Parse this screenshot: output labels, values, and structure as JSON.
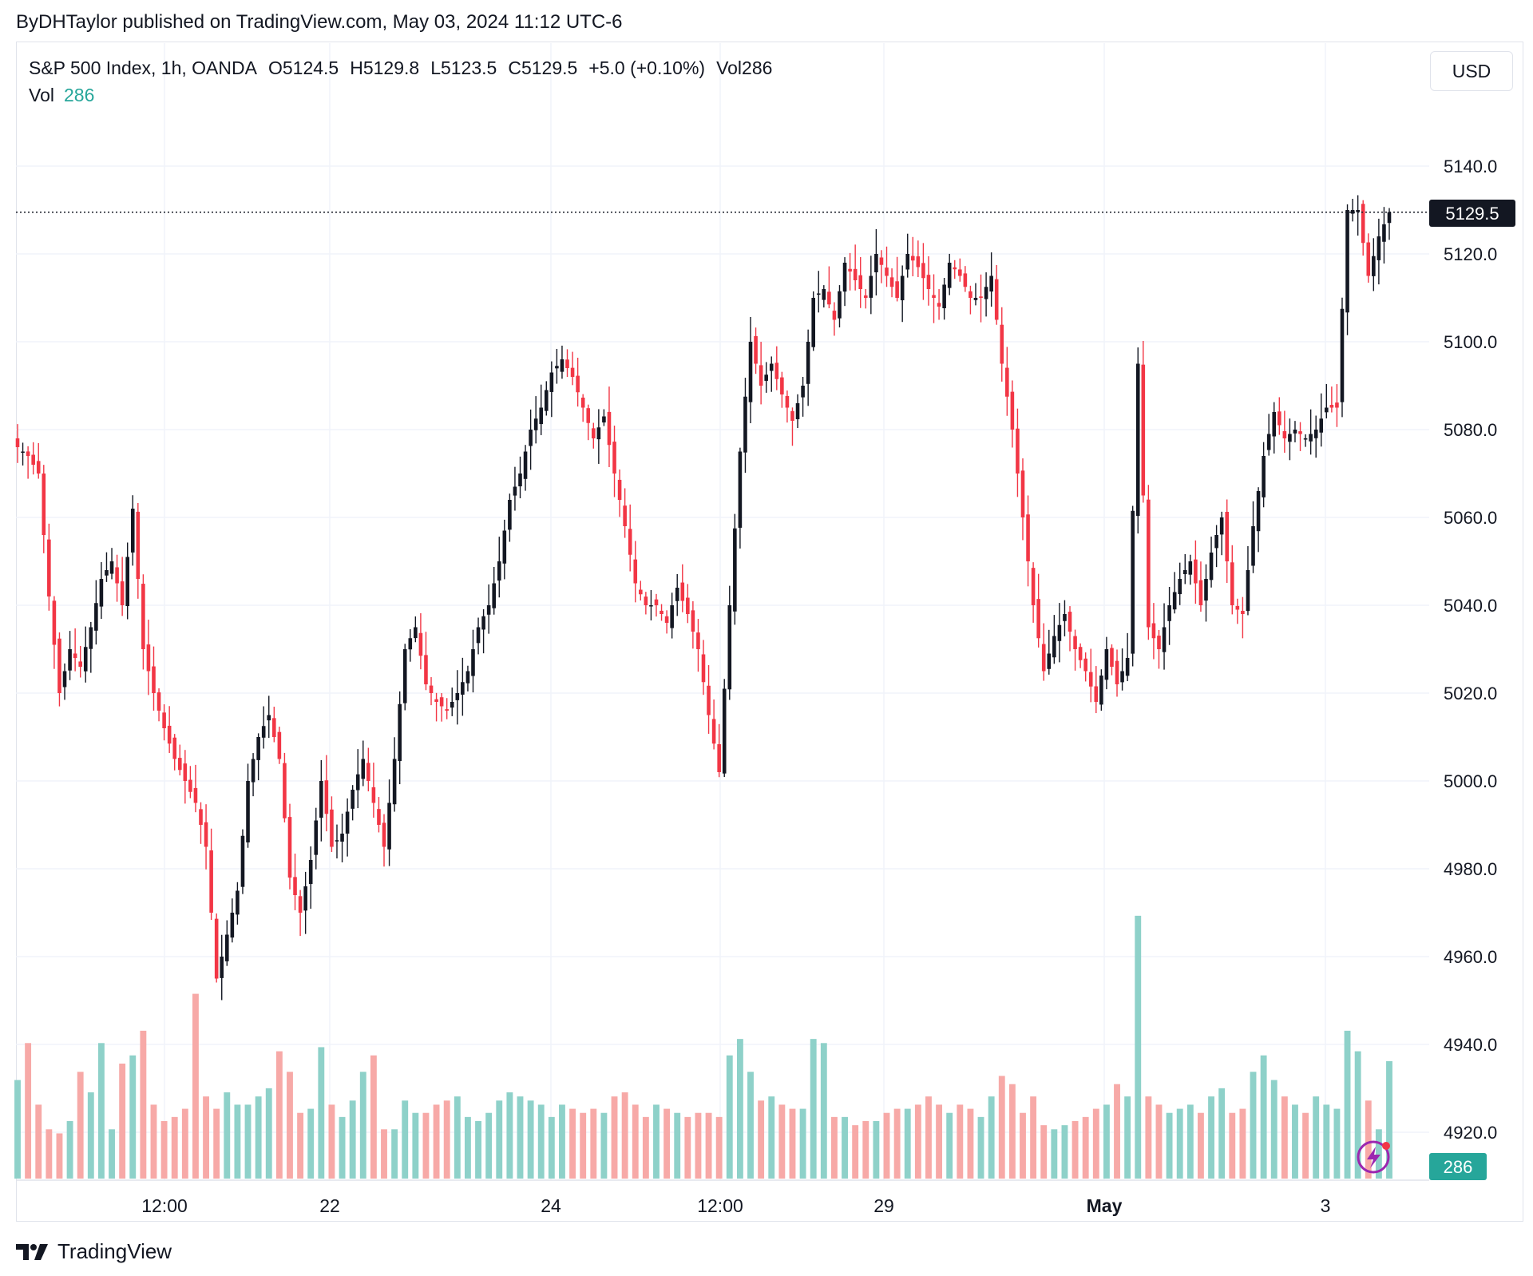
{
  "header": {
    "published_line": "ByDHTaylor published on TradingView.com, May 03, 2024 11:12 UTC-6"
  },
  "legend": {
    "symbol": "S&P 500 Index, 1h, OANDA",
    "open": "O5124.5",
    "high": "H5129.8",
    "low": "L5123.5",
    "close": "C5129.5",
    "change": "+5.0 (+0.10%)",
    "volume": "Vol286",
    "vol_label": "Vol",
    "vol_value": "286"
  },
  "currency_button": "USD",
  "price_label": "5129.5",
  "volume_label": "286",
  "footer": {
    "brand": "TradingView"
  },
  "colors": {
    "up": "#131722",
    "down": "#f23645",
    "vol_up": "#8ed1c9",
    "vol_down": "#f7a9a7",
    "accent": "#26a69a"
  },
  "chart_data": {
    "type": "candlestick",
    "title": "",
    "xlabel": "",
    "ylabel": "",
    "ylim": [
      4912,
      5155
    ],
    "y_ticks": [
      "5140.0",
      "5120.0",
      "5100.0",
      "5080.0",
      "5060.0",
      "5040.0",
      "5020.0",
      "5000.0",
      "4980.0",
      "4960.0",
      "4940.0",
      "4920.0"
    ],
    "x_ticks": [
      "12:00",
      "22",
      "24",
      "12:00",
      "29",
      "May",
      "3"
    ],
    "last_price": 5129.5,
    "grid": true,
    "key_points": [
      5076,
      5074,
      5070,
      5042,
      5020,
      5030,
      5026,
      5035,
      5046,
      5050,
      5040,
      5062,
      5030,
      5020,
      5012,
      5005,
      5000,
      4995,
      4985,
      4955,
      4965,
      4975,
      5000,
      5010,
      5015,
      5005,
      4978,
      4970,
      4982,
      5000,
      4985,
      4988,
      4998,
      5005,
      4995,
      4985,
      5005,
      5030,
      5035,
      5022,
      5018,
      5016,
      5020,
      5025,
      5035,
      5040,
      5050,
      5064,
      5070,
      5080,
      5085,
      5093,
      5096,
      5092,
      5085,
      5078,
      5083,
      5070,
      5058,
      5045,
      5040,
      5040,
      5036,
      5044,
      5038,
      5030,
      5015,
      5002,
      5040,
      5075,
      5100,
      5090,
      5095,
      5088,
      5082,
      5090,
      5110,
      5112,
      5105,
      5118,
      5114,
      5110,
      5120,
      5115,
      5110,
      5120,
      5117,
      5112,
      5108,
      5118,
      5115,
      5110,
      5110,
      5115,
      5095,
      5080,
      5060,
      5040,
      5025,
      5033,
      5038,
      5030,
      5025,
      5018,
      5030,
      5022,
      5028,
      5095,
      5035,
      5030,
      5040,
      5046,
      5050,
      5040,
      5052,
      5060,
      5040,
      5038,
      5058,
      5074,
      5084,
      5078,
      5080,
      5078,
      5080,
      5085,
      5085,
      5130,
      5130,
      5115,
      5124,
      5129.5
    ],
    "volume_values": [
      240,
      330,
      180,
      120,
      110,
      140,
      260,
      210,
      330,
      120,
      280,
      300,
      360,
      180,
      140,
      150,
      170,
      450,
      200,
      170,
      210,
      180,
      180,
      200,
      220,
      310,
      260,
      160,
      170,
      320,
      180,
      150,
      190,
      260,
      300,
      120,
      120,
      190,
      160,
      160,
      180,
      190,
      200,
      150,
      140,
      160,
      190,
      210,
      200,
      190,
      180,
      150,
      180,
      170,
      160,
      170,
      160,
      200,
      210,
      180,
      150,
      180,
      170,
      160,
      150,
      160,
      160,
      150,
      300,
      340,
      260,
      190,
      200,
      180,
      170,
      170,
      340,
      330,
      150,
      150,
      130,
      140,
      140,
      160,
      170,
      170,
      180,
      200,
      180,
      160,
      180,
      170,
      150,
      200,
      250,
      230,
      160,
      200,
      130,
      120,
      130,
      140,
      150,
      170,
      180,
      230,
      200,
      640,
      200,
      180,
      160,
      170,
      180,
      160,
      200,
      220,
      160,
      170,
      260,
      300,
      240,
      200,
      180,
      160,
      200,
      180,
      170,
      360,
      310,
      190,
      120,
      286
    ],
    "volume_ylim": [
      0,
      700
    ]
  }
}
